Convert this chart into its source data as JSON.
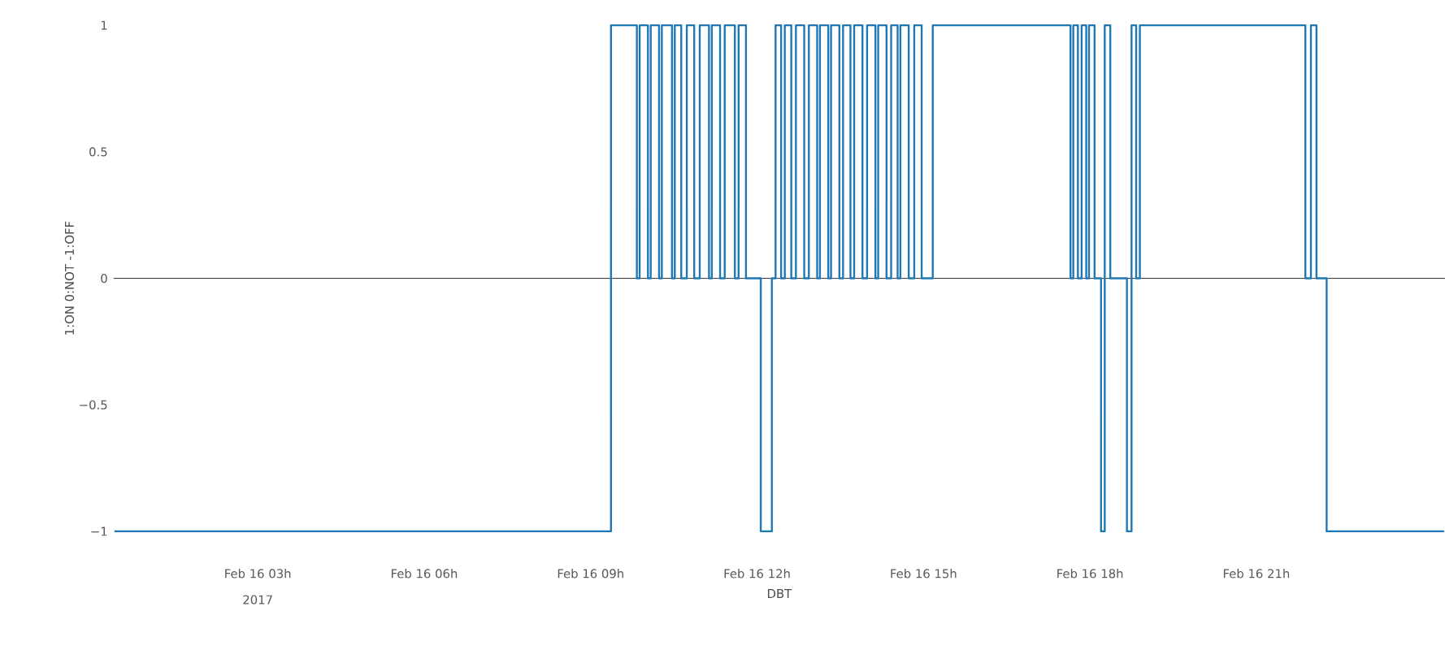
{
  "chart_data": {
    "type": "step",
    "xlabel": "DBT",
    "ylabel": "1:ON   0:NOT  -1:OFF",
    "annotations": [
      "2017"
    ],
    "x": [
      "2017-02-16T00:25",
      "2017-02-16T09:22",
      "2017-02-16T09:50",
      "2017-02-16T09:53",
      "2017-02-16T10:02",
      "2017-02-16T10:05",
      "2017-02-16T10:14",
      "2017-02-16T10:17",
      "2017-02-16T10:28",
      "2017-02-16T10:31",
      "2017-02-16T10:38",
      "2017-02-16T10:44",
      "2017-02-16T10:52",
      "2017-02-16T10:58",
      "2017-02-16T11:08",
      "2017-02-16T11:11",
      "2017-02-16T11:20",
      "2017-02-16T11:25",
      "2017-02-16T11:36",
      "2017-02-16T11:40",
      "2017-02-16T11:48",
      "2017-02-16T12:04",
      "2017-02-16T12:16",
      "2017-02-16T12:20",
      "2017-02-16T12:26",
      "2017-02-16T12:30",
      "2017-02-16T12:37",
      "2017-02-16T12:42",
      "2017-02-16T12:51",
      "2017-02-16T12:56",
      "2017-02-16T13:05",
      "2017-02-16T13:08",
      "2017-02-16T13:17",
      "2017-02-16T13:20",
      "2017-02-16T13:29",
      "2017-02-16T13:33",
      "2017-02-16T13:41",
      "2017-02-16T13:45",
      "2017-02-16T13:54",
      "2017-02-16T13:59",
      "2017-02-16T14:08",
      "2017-02-16T14:11",
      "2017-02-16T14:20",
      "2017-02-16T14:25",
      "2017-02-16T14:32",
      "2017-02-16T14:35",
      "2017-02-16T14:44",
      "2017-02-16T14:50",
      "2017-02-16T14:58",
      "2017-02-16T15:02",
      "2017-02-16T15:10",
      "2017-02-16T17:39",
      "2017-02-16T17:42",
      "2017-02-16T17:47",
      "2017-02-16T17:51",
      "2017-02-16T17:56",
      "2017-02-16T17:59",
      "2017-02-16T18:05",
      "2017-02-16T18:12",
      "2017-02-16T18:16",
      "2017-02-16T18:22",
      "2017-02-16T18:40",
      "2017-02-16T18:45",
      "2017-02-16T18:50",
      "2017-02-16T18:54",
      "2017-02-16T21:53",
      "2017-02-16T21:59",
      "2017-02-16T22:05",
      "2017-02-16T22:16",
      "2017-02-17T00:23"
    ],
    "series": [
      {
        "color": "#1f77b4",
        "values": [
          -1,
          1,
          0,
          1,
          0,
          1,
          0,
          1,
          0,
          1,
          0,
          1,
          0,
          1,
          0,
          1,
          0,
          1,
          0,
          1,
          0,
          -1,
          0,
          1,
          0,
          1,
          0,
          1,
          0,
          1,
          0,
          1,
          0,
          1,
          0,
          1,
          0,
          1,
          0,
          1,
          0,
          1,
          0,
          1,
          0,
          1,
          0,
          1,
          0,
          0,
          1,
          0,
          1,
          0,
          1,
          0,
          1,
          0,
          -1,
          1,
          0,
          -1,
          1,
          0,
          1,
          0,
          1,
          0,
          -1,
          -1
        ]
      }
    ],
    "xlim": [
      "2017-02-16T00:24",
      "2017-02-17T00:24"
    ],
    "xticks": [
      {
        "value": "2017-02-16T03:00",
        "label": "Feb 16 03h"
      },
      {
        "value": "2017-02-16T06:00",
        "label": "Feb 16 06h"
      },
      {
        "value": "2017-02-16T09:00",
        "label": "Feb 16 09h"
      },
      {
        "value": "2017-02-16T12:00",
        "label": "Feb 16 12h"
      },
      {
        "value": "2017-02-16T15:00",
        "label": "Feb 16 15h"
      },
      {
        "value": "2017-02-16T18:00",
        "label": "Feb 16 18h"
      },
      {
        "value": "2017-02-16T21:00",
        "label": "Feb 16 21h"
      }
    ],
    "ylim": [
      -1,
      1
    ],
    "yticks": [
      {
        "value": -1,
        "label": "−1"
      },
      {
        "value": -0.5,
        "label": "−0.5"
      },
      0,
      0.5,
      1
    ],
    "ref_lines": [
      {
        "axis": "y",
        "value": 0,
        "color": "#444444"
      }
    ],
    "grid": false
  }
}
